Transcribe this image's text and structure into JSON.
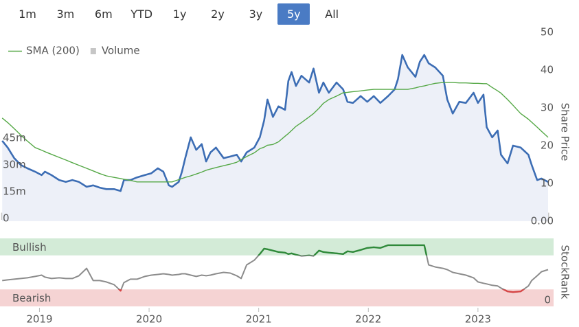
{
  "toolbar": {
    "ranges": [
      "1m",
      "3m",
      "6m",
      "YTD",
      "1y",
      "2y",
      "3y",
      "5y",
      "All"
    ],
    "selected": 7
  },
  "chart_data": [
    {
      "type": "line",
      "ylabel": "Share Price",
      "legend": "top-left",
      "grid": false,
      "x": [
        2018.66,
        2018.71,
        2018.77,
        2018.83,
        2018.89,
        2018.96,
        2019.02,
        2019.05,
        2019.11,
        2019.18,
        2019.24,
        2019.3,
        2019.36,
        2019.43,
        2019.49,
        2019.55,
        2019.61,
        2019.68,
        2019.74,
        2019.77,
        2019.83,
        2019.89,
        2019.96,
        2020.02,
        2020.08,
        2020.13,
        2020.18,
        2020.21,
        2020.27,
        2020.3,
        2020.33,
        2020.38,
        2020.43,
        2020.48,
        2020.52,
        2020.56,
        2020.61,
        2020.68,
        2020.74,
        2020.8,
        2020.84,
        2020.89,
        2020.96,
        2021.01,
        2021.05,
        2021.08,
        2021.13,
        2021.18,
        2021.24,
        2021.27,
        2021.3,
        2021.34,
        2021.39,
        2021.46,
        2021.5,
        2021.55,
        2021.59,
        2021.64,
        2021.71,
        2021.77,
        2021.81,
        2021.86,
        2021.93,
        2021.99,
        2022.05,
        2022.11,
        2022.18,
        2022.24,
        2022.27,
        2022.31,
        2022.36,
        2022.43,
        2022.47,
        2022.51,
        2022.55,
        2022.61,
        2022.68,
        2022.72,
        2022.77,
        2022.83,
        2022.89,
        2022.96,
        2023.0,
        2023.05,
        2023.08,
        2023.13,
        2023.18,
        2023.21,
        2023.27,
        2023.32,
        2023.39,
        2023.46,
        2023.49,
        2023.54,
        2023.58,
        2023.64
      ],
      "xlim": [
        2018.64,
        2023.69
      ],
      "ylim": [
        0,
        50
      ],
      "yticks": [
        {
          "value": 0,
          "label": "0.00"
        },
        10,
        20,
        30,
        40,
        50
      ],
      "y2lim": [
        0,
        105
      ],
      "y2ticks": [
        0,
        {
          "value": 15,
          "label": "15m"
        },
        {
          "value": 30,
          "label": "30m"
        },
        {
          "value": 45,
          "label": "45m"
        }
      ],
      "series": [
        {
          "type": "area",
          "color": "#3c6db4",
          "area_color": "#edf0f8",
          "values": [
            21.3,
            19.5,
            16.7,
            14.9,
            14.0,
            13.1,
            12.2,
            13.1,
            12.2,
            10.9,
            10.4,
            10.9,
            10.4,
            9.1,
            9.5,
            8.9,
            8.5,
            8.5,
            8.0,
            10.9,
            10.9,
            11.6,
            12.2,
            12.7,
            14.0,
            13.1,
            9.5,
            9.1,
            10.4,
            13.1,
            16.7,
            22.2,
            18.9,
            20.4,
            15.8,
            18.2,
            19.5,
            16.7,
            17.1,
            17.6,
            15.8,
            18.2,
            19.5,
            22.2,
            26.7,
            32.2,
            27.6,
            30.4,
            29.5,
            37.1,
            39.5,
            35.8,
            38.5,
            36.7,
            40.4,
            34.0,
            36.7,
            34.0,
            36.7,
            34.9,
            31.6,
            31.3,
            33.1,
            31.6,
            33.1,
            31.3,
            33.1,
            34.9,
            37.6,
            44.0,
            40.7,
            38.2,
            42.2,
            44.0,
            41.8,
            40.7,
            38.5,
            32.2,
            28.5,
            31.6,
            31.3,
            34.0,
            31.3,
            33.5,
            24.9,
            22.2,
            24.0,
            17.6,
            15.3,
            20.0,
            19.5,
            17.6,
            14.9,
            10.9,
            11.3,
            10.4
          ]
        },
        {
          "name": "SMA (200)",
          "type": "line",
          "color": "#55a846",
          "values": [
            27.3,
            26.1,
            24.5,
            22.8,
            21.2,
            19.5,
            18.8,
            18.4,
            17.7,
            16.9,
            16.2,
            15.5,
            14.8,
            14.0,
            13.3,
            12.6,
            12.0,
            11.6,
            11.3,
            11.1,
            10.8,
            10.4,
            10.4,
            10.4,
            10.4,
            10.4,
            10.4,
            10.4,
            11.0,
            11.3,
            11.6,
            12.0,
            12.5,
            13.0,
            13.5,
            13.8,
            14.2,
            14.7,
            15.1,
            15.6,
            16.3,
            17.1,
            18.1,
            19.2,
            19.6,
            20.1,
            20.3,
            21.0,
            22.5,
            23.2,
            24.0,
            25.1,
            26.1,
            27.6,
            28.5,
            29.9,
            31.2,
            32.2,
            33.1,
            34.0,
            34.1,
            34.3,
            34.5,
            34.7,
            34.9,
            34.9,
            34.9,
            34.9,
            34.9,
            34.9,
            34.9,
            35.3,
            35.6,
            35.8,
            36.1,
            36.5,
            36.7,
            36.7,
            36.7,
            36.6,
            36.6,
            36.5,
            36.5,
            36.4,
            36.4,
            35.4,
            34.5,
            33.9,
            32.2,
            30.7,
            28.5,
            27.0,
            26.2,
            24.9,
            23.8,
            22.2
          ]
        },
        {
          "name": "Volume",
          "type": "bar",
          "axis": "y2",
          "color": "#c6c6c6",
          "values": [
            4,
            3,
            2,
            5,
            3,
            2,
            4,
            3,
            2,
            3,
            2,
            3,
            4,
            3,
            2,
            5,
            3,
            2,
            4,
            3,
            6,
            3,
            7,
            5,
            4,
            6,
            8,
            3,
            5,
            4,
            6,
            13,
            5,
            4,
            33,
            5,
            6,
            4,
            5,
            3,
            4,
            5,
            6,
            7,
            5,
            11,
            8,
            6,
            5,
            7,
            6,
            5,
            8,
            4,
            6,
            5,
            4,
            7,
            3,
            5,
            4,
            6,
            3,
            5,
            4,
            3,
            5,
            4,
            6,
            7,
            5,
            4,
            6,
            5,
            4,
            3,
            5,
            6,
            4,
            5,
            4,
            6,
            5,
            7,
            4,
            6,
            21,
            5,
            4,
            9,
            5,
            4,
            6,
            18,
            3,
            4
          ]
        }
      ]
    },
    {
      "type": "line",
      "ylabel": "StockRank",
      "x": [
        2018.66,
        2018.71,
        2018.77,
        2018.83,
        2018.89,
        2018.96,
        2019.02,
        2019.05,
        2019.11,
        2019.18,
        2019.24,
        2019.3,
        2019.36,
        2019.43,
        2019.49,
        2019.55,
        2019.61,
        2019.68,
        2019.74,
        2019.77,
        2019.83,
        2019.89,
        2019.96,
        2020.02,
        2020.08,
        2020.13,
        2020.18,
        2020.21,
        2020.27,
        2020.3,
        2020.33,
        2020.38,
        2020.43,
        2020.48,
        2020.52,
        2020.56,
        2020.61,
        2020.68,
        2020.74,
        2020.8,
        2020.84,
        2020.89,
        2020.96,
        2021.01,
        2021.05,
        2021.08,
        2021.13,
        2021.18,
        2021.24,
        2021.27,
        2021.3,
        2021.34,
        2021.39,
        2021.46,
        2021.5,
        2021.55,
        2021.59,
        2021.64,
        2021.71,
        2021.77,
        2021.81,
        2021.86,
        2021.93,
        2021.99,
        2022.05,
        2022.11,
        2022.18,
        2022.24,
        2022.27,
        2022.31,
        2022.36,
        2022.43,
        2022.47,
        2022.51,
        2022.55,
        2022.61,
        2022.68,
        2022.72,
        2022.77,
        2022.83,
        2022.89,
        2022.96,
        2023.0,
        2023.05,
        2023.08,
        2023.13,
        2023.18,
        2023.21,
        2023.27,
        2023.32,
        2023.39,
        2023.46,
        2023.49,
        2023.54,
        2023.58,
        2023.64
      ],
      "xlim": [
        2018.64,
        2023.69
      ],
      "xticks": [
        2019,
        2020,
        2021,
        2022,
        2023
      ],
      "ylim": [
        0,
        100
      ],
      "yticks": [
        0
      ],
      "zones": [
        {
          "label": "Bullish",
          "from": 75,
          "to": 100,
          "color": "#2f8a3a",
          "fill": "#d3ebd7"
        },
        {
          "label": "Bearish",
          "from": 0,
          "to": 25,
          "color": "#d64545",
          "fill": "#f5d3d3"
        }
      ],
      "series": [
        {
          "color": "#8c8c8c",
          "values": [
            38,
            39,
            40,
            41,
            42,
            44,
            46,
            43,
            41,
            42,
            41,
            41,
            45,
            56,
            38,
            38,
            36,
            32,
            23,
            35,
            40,
            40,
            44,
            46,
            47,
            48,
            47,
            46,
            47,
            48,
            48,
            46,
            44,
            46,
            45,
            46,
            48,
            50,
            49,
            45,
            41,
            61,
            68,
            77,
            85,
            84,
            82,
            80,
            79,
            77,
            78,
            76,
            74,
            75,
            74,
            82,
            80,
            79,
            78,
            77,
            81,
            80,
            83,
            86,
            87,
            86,
            90,
            90,
            90,
            90,
            90,
            90,
            90,
            90,
            61,
            58,
            56,
            54,
            50,
            48,
            46,
            42,
            36,
            34,
            33,
            31,
            30,
            27,
            22,
            21,
            22,
            30,
            38,
            45,
            51,
            54
          ]
        }
      ]
    }
  ]
}
